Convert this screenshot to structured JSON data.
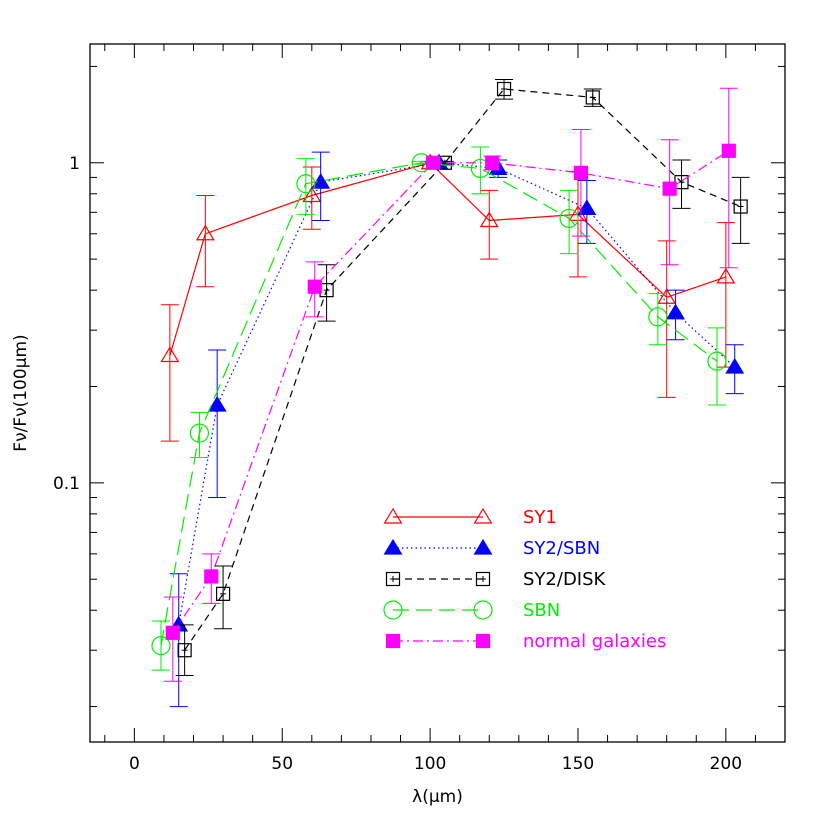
{
  "chart_data": {
    "type": "line",
    "xlabel": "λ(μm)",
    "ylabel": "Fν/Fν(100μm)",
    "xlim": [
      -15,
      220
    ],
    "ylim": [
      0.0155,
      2.35
    ],
    "yscale": "log",
    "xticks": [
      0,
      50,
      100,
      150,
      200
    ],
    "yticks": [
      {
        "value": 0.1,
        "label": "0.1"
      },
      {
        "value": 1,
        "label": "1"
      }
    ],
    "legend_position": "bottom-center",
    "series": [
      {
        "name": "SY1",
        "color": "#ff0000",
        "marker": "triangle-open",
        "dash": "solid",
        "points": [
          {
            "x": 12,
            "y": 0.25,
            "lo": 0.135,
            "hi": 0.36
          },
          {
            "x": 24,
            "y": 0.6,
            "lo": 0.41,
            "hi": 0.79
          },
          {
            "x": 60,
            "y": 0.79,
            "lo": 0.62,
            "hi": 0.97
          },
          {
            "x": 100,
            "y": 1.0,
            "lo": 0.99,
            "hi": 1.01
          },
          {
            "x": 120,
            "y": 0.66,
            "lo": 0.5,
            "hi": 0.82
          },
          {
            "x": 150,
            "y": 0.69,
            "lo": 0.44,
            "hi": 0.94
          },
          {
            "x": 180,
            "y": 0.38,
            "lo": 0.185,
            "hi": 0.57
          },
          {
            "x": 200,
            "y": 0.44,
            "lo": 0.23,
            "hi": 0.65
          }
        ]
      },
      {
        "name": "SY2/SBN",
        "color": "#0000ff",
        "marker": "triangle-filled",
        "dash": "dotted",
        "points": [
          {
            "x": 15,
            "y": 0.036,
            "lo": 0.02,
            "hi": 0.052
          },
          {
            "x": 28,
            "y": 0.175,
            "lo": 0.09,
            "hi": 0.26
          },
          {
            "x": 63,
            "y": 0.87,
            "lo": 0.66,
            "hi": 1.08
          },
          {
            "x": 103,
            "y": 1.0,
            "lo": 0.99,
            "hi": 1.01
          },
          {
            "x": 123,
            "y": 0.96,
            "lo": 0.9,
            "hi": 1.02
          },
          {
            "x": 153,
            "y": 0.72,
            "lo": 0.56,
            "hi": 0.88
          },
          {
            "x": 183,
            "y": 0.34,
            "lo": 0.28,
            "hi": 0.4
          },
          {
            "x": 203,
            "y": 0.23,
            "lo": 0.19,
            "hi": 0.27
          }
        ]
      },
      {
        "name": "SY2/DISK",
        "color": "#000000",
        "marker": "square-open",
        "dash": "dashed",
        "points": [
          {
            "x": 17,
            "y": 0.03,
            "lo": 0.025,
            "hi": 0.036
          },
          {
            "x": 30,
            "y": 0.045,
            "lo": 0.035,
            "hi": 0.055
          },
          {
            "x": 65,
            "y": 0.4,
            "lo": 0.32,
            "hi": 0.48
          },
          {
            "x": 105,
            "y": 1.0,
            "lo": 0.99,
            "hi": 1.01
          },
          {
            "x": 125,
            "y": 1.7,
            "lo": 1.58,
            "hi": 1.82
          },
          {
            "x": 155,
            "y": 1.6,
            "lo": 1.5,
            "hi": 1.7
          },
          {
            "x": 185,
            "y": 0.87,
            "lo": 0.72,
            "hi": 1.02
          },
          {
            "x": 205,
            "y": 0.73,
            "lo": 0.56,
            "hi": 0.9
          }
        ]
      },
      {
        "name": "SBN",
        "color": "#00ee00",
        "marker": "circle-open",
        "dash": "longdash",
        "points": [
          {
            "x": 9,
            "y": 0.031,
            "lo": 0.026,
            "hi": 0.037
          },
          {
            "x": 22,
            "y": 0.143,
            "lo": 0.12,
            "hi": 0.166
          },
          {
            "x": 58,
            "y": 0.86,
            "lo": 0.69,
            "hi": 1.03
          },
          {
            "x": 97,
            "y": 1.0,
            "lo": 0.99,
            "hi": 1.01
          },
          {
            "x": 117,
            "y": 0.96,
            "lo": 0.8,
            "hi": 1.12
          },
          {
            "x": 147,
            "y": 0.67,
            "lo": 0.52,
            "hi": 0.82
          },
          {
            "x": 177,
            "y": 0.33,
            "lo": 0.27,
            "hi": 0.39
          },
          {
            "x": 197,
            "y": 0.24,
            "lo": 0.175,
            "hi": 0.305
          }
        ]
      },
      {
        "name": "normal galaxies",
        "color": "#ff00ff",
        "marker": "square-filled",
        "dash": "dashdot",
        "points": [
          {
            "x": 13,
            "y": 0.034,
            "lo": 0.024,
            "hi": 0.044
          },
          {
            "x": 26,
            "y": 0.051,
            "lo": 0.042,
            "hi": 0.06
          },
          {
            "x": 61,
            "y": 0.41,
            "lo": 0.33,
            "hi": 0.49
          },
          {
            "x": 101,
            "y": 1.0,
            "lo": 0.99,
            "hi": 1.01
          },
          {
            "x": 121,
            "y": 1.0,
            "lo": 0.95,
            "hi": 1.05
          },
          {
            "x": 151,
            "y": 0.93,
            "lo": 0.59,
            "hi": 1.27
          },
          {
            "x": 181,
            "y": 0.83,
            "lo": 0.48,
            "hi": 1.18
          },
          {
            "x": 201,
            "y": 1.09,
            "lo": 0.47,
            "hi": 1.71
          }
        ]
      }
    ]
  }
}
